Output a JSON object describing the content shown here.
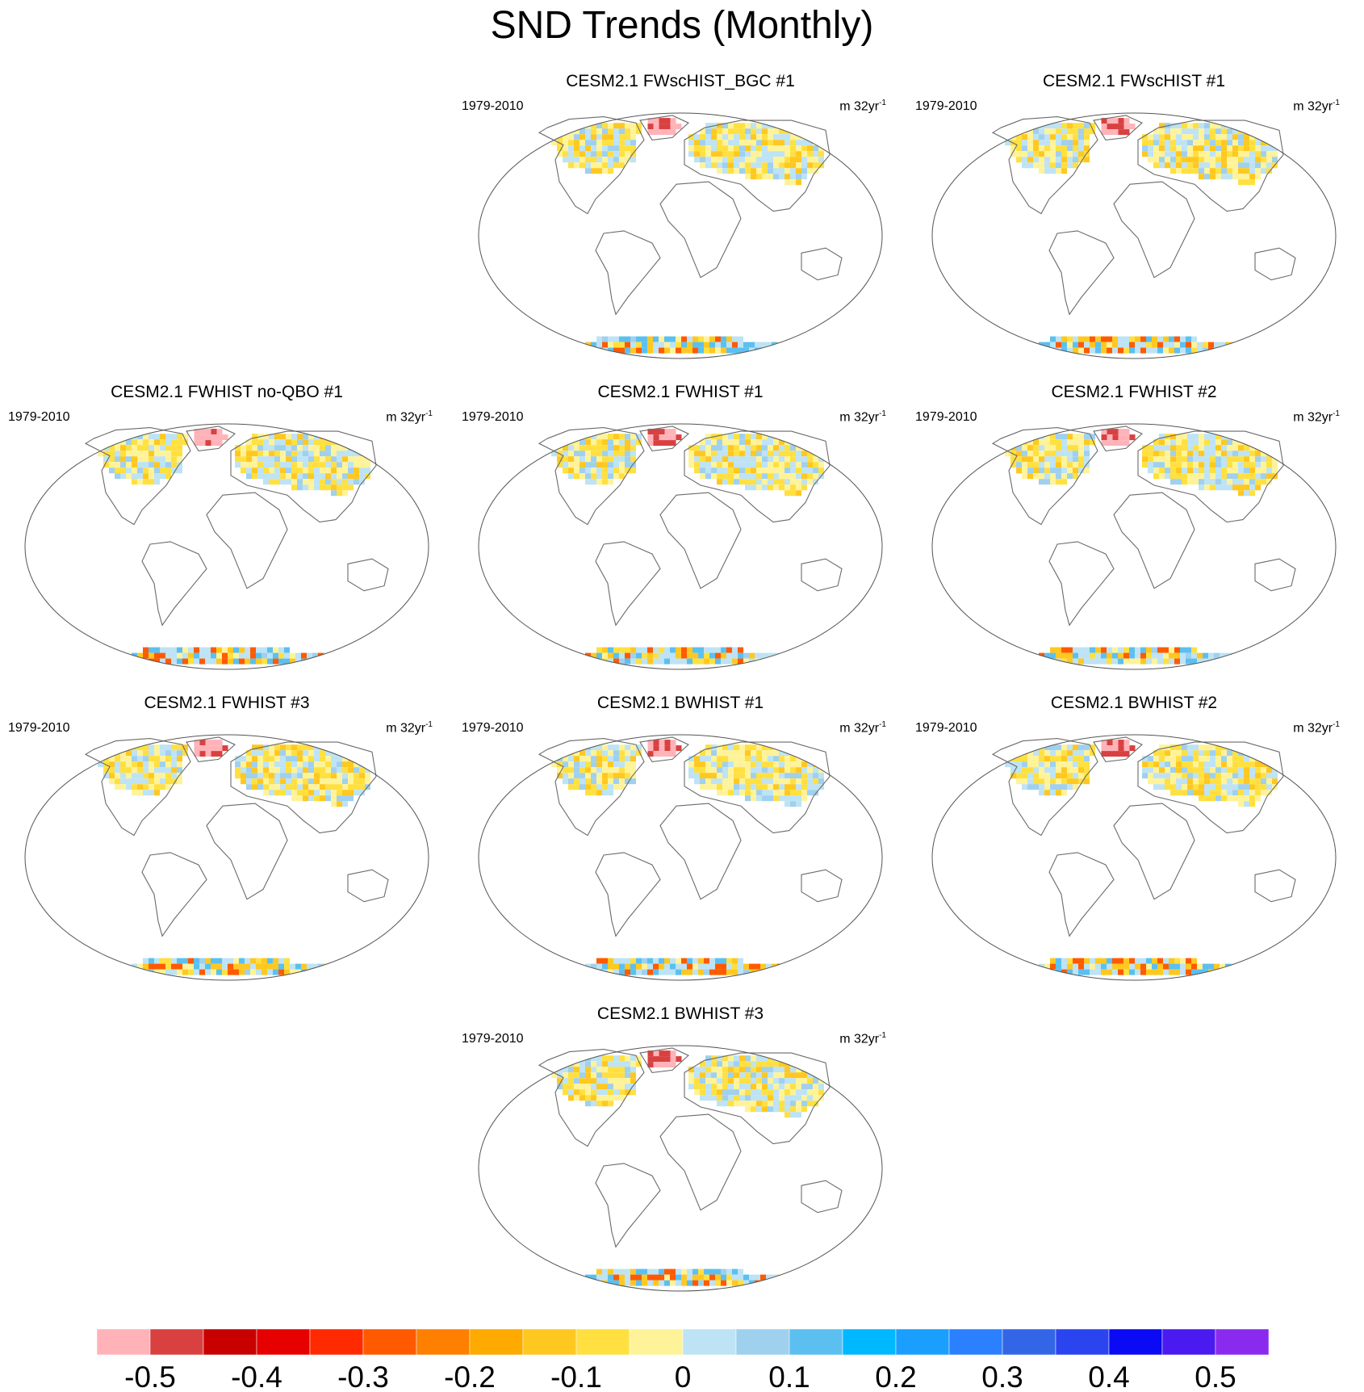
{
  "title": "SND Trends (Monthly)",
  "panels": [
    {
      "title": "CESM2.1 FWscHIST_BGC #1",
      "period": "1979-2010",
      "units_base": "m 32yr",
      "units_exp": "-1"
    },
    {
      "title": "CESM2.1 FWscHIST #1",
      "period": "1979-2010",
      "units_base": "m 32yr",
      "units_exp": "-1"
    },
    {
      "title": "CESM2.1 FWHIST no-QBO #1",
      "period": "1979-2010",
      "units_base": "m 32yr",
      "units_exp": "-1"
    },
    {
      "title": "CESM2.1 FWHIST #1",
      "period": "1979-2010",
      "units_base": "m 32yr",
      "units_exp": "-1"
    },
    {
      "title": "CESM2.1 FWHIST #2",
      "period": "1979-2010",
      "units_base": "m 32yr",
      "units_exp": "-1"
    },
    {
      "title": "CESM2.1 FWHIST #3",
      "period": "1979-2010",
      "units_base": "m 32yr",
      "units_exp": "-1"
    },
    {
      "title": "CESM2.1 BWHIST #1",
      "period": "1979-2010",
      "units_base": "m 32yr",
      "units_exp": "-1"
    },
    {
      "title": "CESM2.1 BWHIST #2",
      "period": "1979-2010",
      "units_base": "m 32yr",
      "units_exp": "-1"
    },
    {
      "title": "CESM2.1 BWHIST #3",
      "period": "1979-2010",
      "units_base": "m 32yr",
      "units_exp": "-1"
    }
  ],
  "colorbar": {
    "colors": [
      "#ffb3b8",
      "#d94040",
      "#c80000",
      "#e60000",
      "#ff2a00",
      "#ff5a00",
      "#ff8000",
      "#ffaa00",
      "#ffc820",
      "#ffe040",
      "#fff399",
      "#bde3f5",
      "#9fd0ee",
      "#5bc0f0",
      "#00b8ff",
      "#1a9fff",
      "#2a80ff",
      "#3366e6",
      "#2a44f0",
      "#0a0af5",
      "#4a1af0",
      "#8a2aee"
    ],
    "tick_labels": [
      "-0.5",
      "-0.4",
      "-0.3",
      "-0.2",
      "-0.1",
      "0",
      "0.1",
      "0.2",
      "0.3",
      "0.4",
      "0.5"
    ]
  }
}
